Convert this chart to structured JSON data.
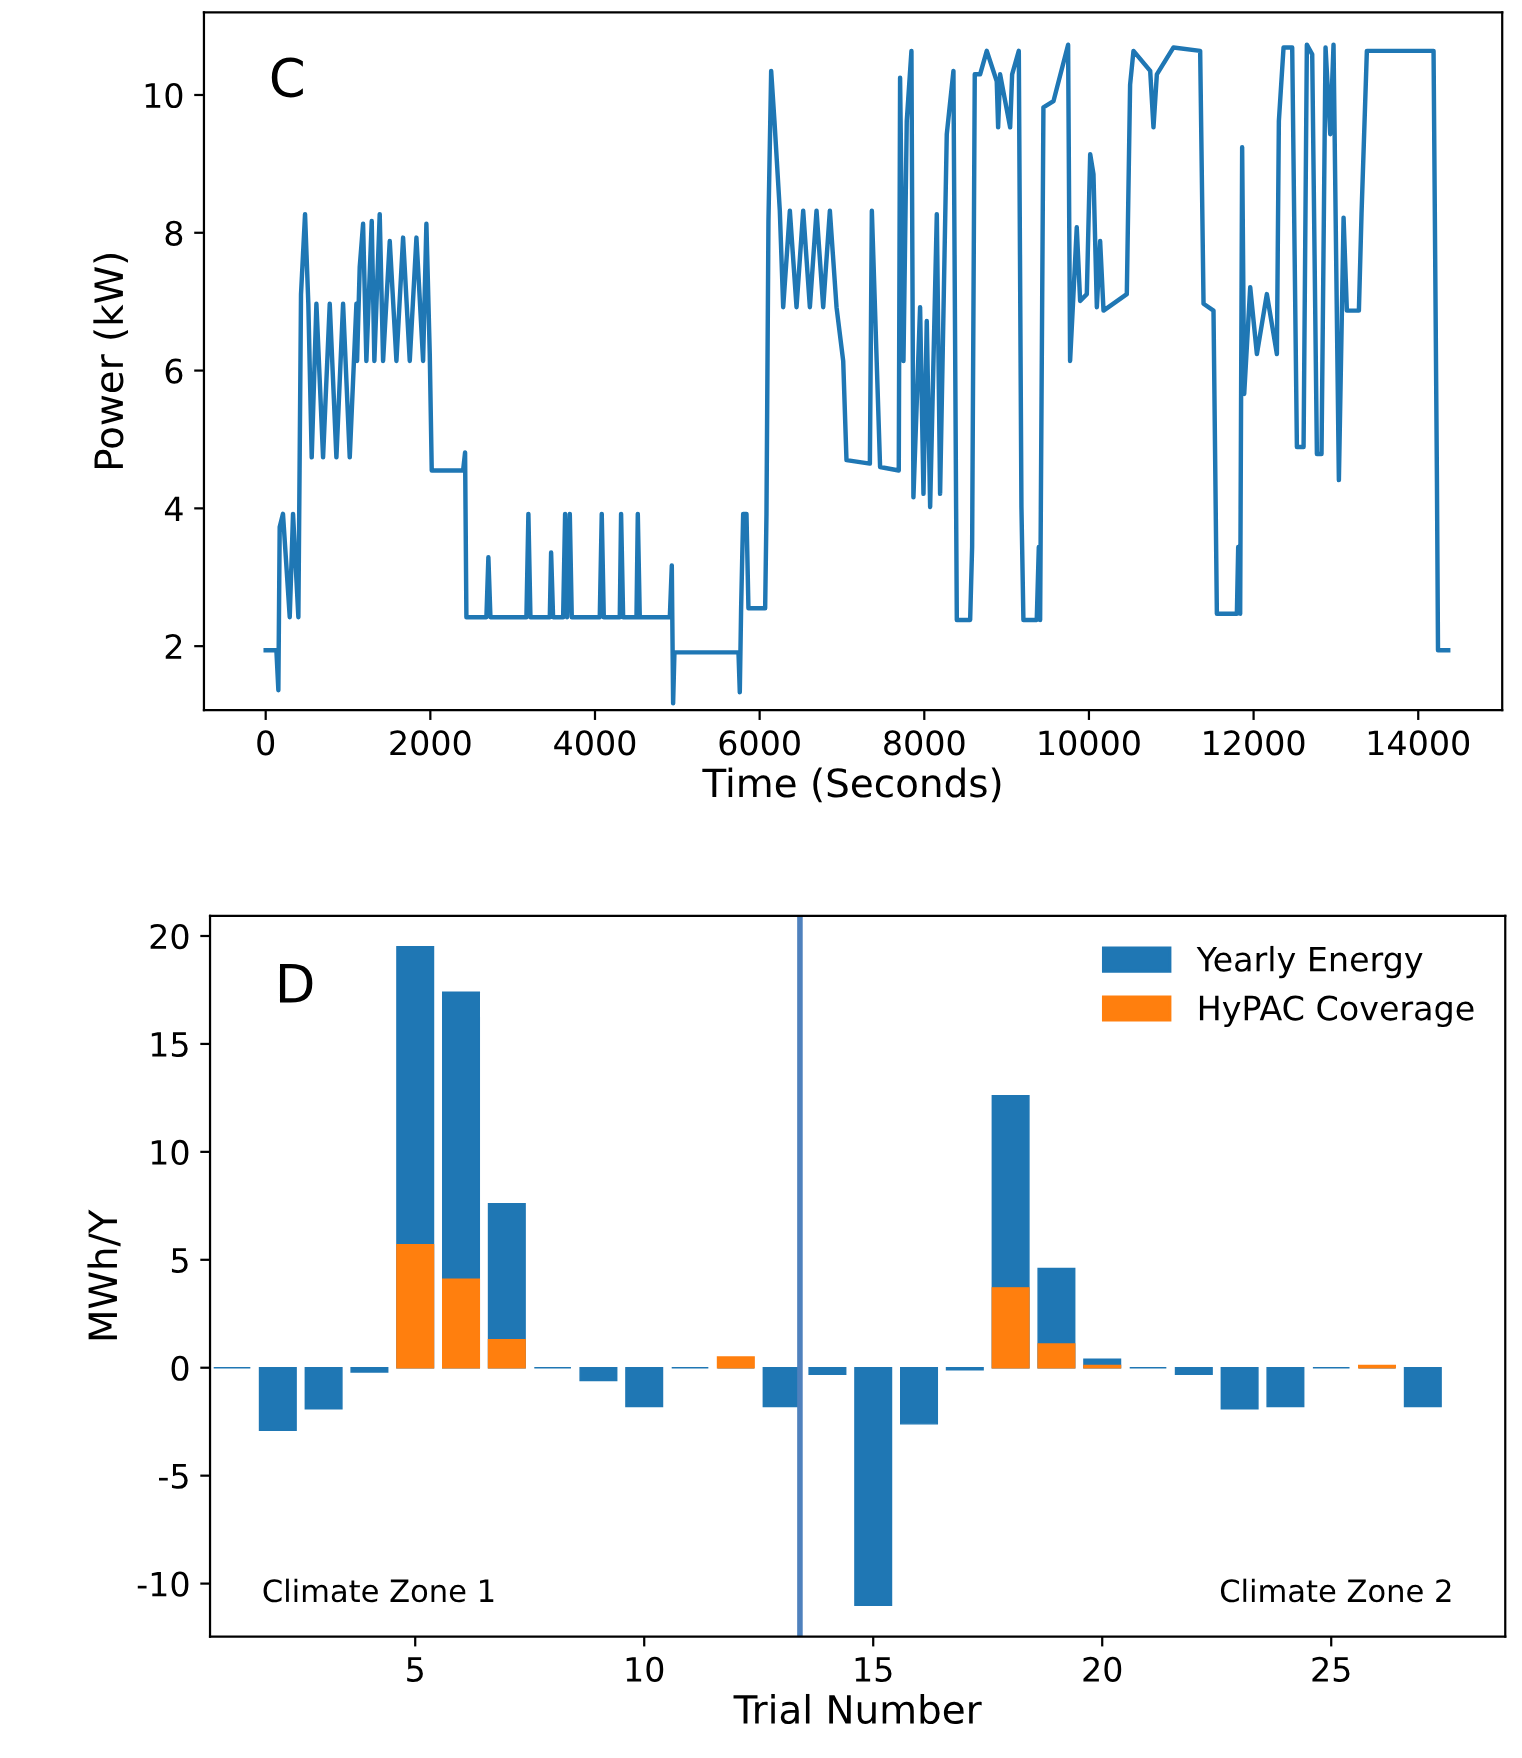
{
  "chart_data": [
    {
      "type": "line",
      "xlabel": "Time (Seconds)",
      "ylabel": "Power (kW)",
      "annotations": [
        "C"
      ],
      "xlim": [
        -750,
        15020
      ],
      "ylim": [
        1.07,
        11.2
      ],
      "xticks": [
        0,
        2000,
        4000,
        6000,
        8000,
        10000,
        12000,
        14000
      ],
      "yticks": [
        2,
        4,
        6,
        8,
        10
      ],
      "grid": false,
      "legend": false,
      "series": [
        {
          "color": "#1f77b4",
          "x": [
            0,
            130,
            154,
            170,
            210,
            292,
            332,
            397,
            429,
            478,
            518,
            559,
            616,
            697,
            778,
            859,
            940,
            1021,
            1102,
            1110,
            1142,
            1183,
            1223,
            1288,
            1320,
            1385,
            1426,
            1507,
            1588,
            1669,
            1750,
            1831,
            1912,
            1952,
            1993,
            2017,
            2398,
            2422,
            2438,
            2681,
            2705,
            2730,
            3167,
            3191,
            3216,
            3451,
            3467,
            3491,
            3613,
            3637,
            3661,
            3694,
            3718,
            4058,
            4082,
            4107,
            4301,
            4317,
            4342,
            4504,
            4520,
            4544,
            4909,
            4933,
            4949,
            4965,
            5743,
            5759,
            5775,
            5800,
            5840,
            5864,
            6067,
            6083,
            6107,
            6140,
            6180,
            6245,
            6286,
            6367,
            6448,
            6529,
            6610,
            6691,
            6772,
            6853,
            6934,
            7015,
            7055,
            7339,
            7363,
            7463,
            7690,
            7706,
            7747,
            7787,
            7844,
            7868,
            7949,
            7990,
            8030,
            8071,
            8152,
            8192,
            8273,
            8354,
            8395,
            8557,
            8581,
            8613,
            8678,
            8759,
            8880,
            8897,
            8921,
            9043,
            9067,
            9148,
            9180,
            9204,
            9366,
            9391,
            9407,
            9447,
            9569,
            9747,
            9771,
            9812,
            9852,
            9893,
            9974,
            10015,
            10055,
            10096,
            10136,
            10177,
            10460,
            10500,
            10541,
            10744,
            10784,
            10825,
            11027,
            11351,
            11392,
            11513,
            11554,
            11797,
            11813,
            11837,
            11861,
            11886,
            11959,
            12040,
            12161,
            12283,
            12307,
            12364,
            12469,
            12526,
            12607,
            12647,
            12712,
            12769,
            12825,
            12874,
            12931,
            12971,
            13036,
            13093,
            13133,
            13279,
            13311,
            13376,
            14186,
            14227,
            14240,
            14364
          ],
          "values": [
            1.94,
            1.94,
            1.36,
            3.73,
            3.92,
            2.42,
            3.92,
            2.42,
            7.11,
            8.27,
            6.97,
            4.74,
            6.97,
            4.74,
            6.97,
            4.74,
            6.97,
            4.74,
            6.97,
            6.14,
            7.5,
            8.13,
            6.14,
            8.17,
            6.14,
            8.27,
            6.14,
            7.88,
            6.14,
            7.93,
            6.14,
            7.93,
            6.14,
            8.13,
            6.24,
            4.55,
            4.55,
            4.81,
            2.42,
            2.42,
            3.29,
            2.42,
            2.42,
            3.92,
            2.42,
            2.42,
            3.36,
            2.42,
            2.42,
            3.92,
            2.42,
            3.92,
            2.42,
            2.42,
            3.92,
            2.42,
            2.42,
            3.92,
            2.42,
            2.42,
            3.92,
            2.42,
            2.42,
            3.17,
            1.17,
            1.91,
            1.91,
            1.33,
            2.55,
            3.92,
            3.92,
            2.55,
            2.55,
            3.92,
            8.17,
            10.35,
            9.62,
            8.32,
            6.92,
            8.32,
            6.92,
            8.32,
            6.92,
            8.32,
            6.92,
            8.32,
            6.92,
            6.14,
            4.7,
            4.65,
            8.32,
            4.6,
            4.55,
            10.25,
            6.14,
            9.62,
            10.64,
            4.16,
            6.92,
            4.21,
            6.72,
            4.02,
            8.27,
            4.21,
            9.43,
            10.35,
            2.38,
            2.38,
            3.44,
            10.3,
            10.3,
            10.64,
            10.2,
            9.53,
            10.3,
            9.53,
            10.3,
            10.64,
            4.02,
            2.38,
            2.38,
            3.44,
            2.38,
            9.82,
            9.91,
            10.73,
            6.14,
            7.11,
            8.08,
            7.01,
            7.11,
            9.14,
            8.85,
            6.92,
            7.88,
            6.87,
            7.11,
            10.15,
            10.64,
            10.35,
            9.53,
            10.3,
            10.69,
            10.64,
            6.97,
            6.87,
            2.47,
            2.47,
            3.44,
            2.47,
            9.24,
            5.66,
            7.21,
            6.24,
            7.11,
            6.24,
            9.62,
            10.69,
            10.69,
            4.89,
            4.89,
            10.73,
            10.59,
            4.79,
            4.79,
            10.69,
            9.43,
            10.73,
            4.41,
            8.22,
            6.87,
            6.87,
            8.27,
            10.64,
            10.64,
            4.41,
            1.94,
            1.94
          ]
        }
      ]
    },
    {
      "type": "bar",
      "xlabel": "Trial Number",
      "ylabel": "MWh/Y",
      "annotations": [
        "D",
        "Climate Zone 1",
        "Climate Zone 2"
      ],
      "x": [
        1,
        2,
        3,
        4,
        5,
        6,
        7,
        8,
        9,
        10,
        11,
        12,
        13,
        14,
        15,
        16,
        17,
        18,
        19,
        20,
        21,
        22,
        23,
        24,
        25,
        26,
        27
      ],
      "xlim": [
        0.52,
        28.8
      ],
      "ylim": [
        -12.46,
        20.93
      ],
      "xticks": [
        5,
        10,
        15,
        20,
        25
      ],
      "yticks": [
        -10,
        -5,
        0,
        5,
        10,
        15,
        20
      ],
      "grid": false,
      "legend": "top right",
      "ref_lines": [
        {
          "axis": "x",
          "value": 13.4,
          "label": null,
          "color": "#4f81bd"
        }
      ],
      "series": [
        {
          "name": "Yearly Energy",
          "color": "#1f77b4",
          "values": [
            0,
            -2.9,
            -1.9,
            -0.2,
            19.5,
            17.4,
            7.6,
            0,
            -0.6,
            -1.8,
            0,
            0,
            -1.8,
            -0.3,
            -11.0,
            -2.6,
            -0.1,
            12.6,
            4.6,
            0.4,
            0,
            -0.3,
            -1.9,
            -1.8,
            0,
            0,
            -1.8
          ]
        },
        {
          "name": "HyPAC Coverage",
          "color": "#ff7f0e",
          "values": [
            null,
            null,
            null,
            null,
            5.7,
            4.1,
            1.3,
            null,
            null,
            null,
            null,
            0.5,
            null,
            null,
            null,
            null,
            null,
            3.7,
            1.1,
            0.1,
            null,
            null,
            null,
            null,
            null,
            0.1,
            null
          ]
        }
      ]
    }
  ]
}
